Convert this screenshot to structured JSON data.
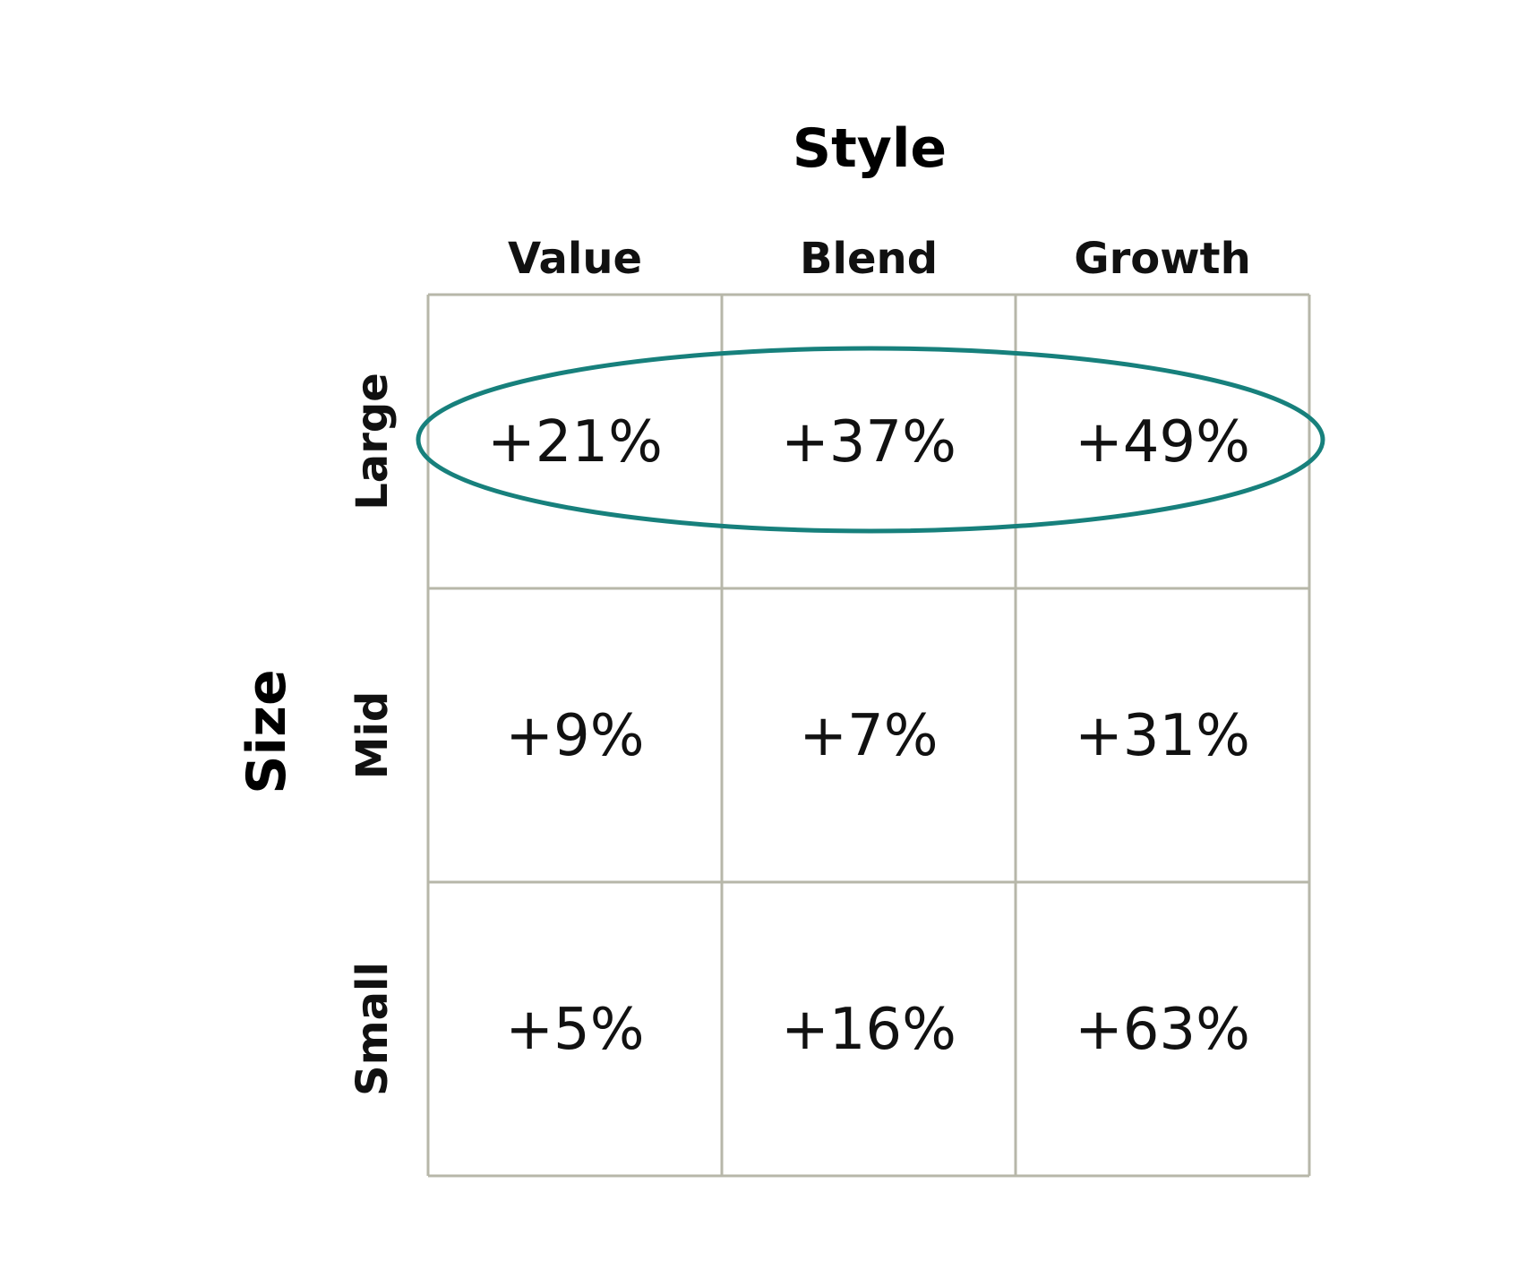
{
  "chart_data": {
    "type": "table",
    "column_axis_title": "Style",
    "row_axis_title": "Size",
    "columns": [
      "Value",
      "Blend",
      "Growth"
    ],
    "rows": [
      "Large",
      "Mid",
      "Small"
    ],
    "values": [
      [
        "+21%",
        "+37%",
        "+49%"
      ],
      [
        "+9%",
        "+7%",
        "+31%"
      ],
      [
        "+5%",
        "+16%",
        "+63%"
      ]
    ],
    "highlighted_row": "Large",
    "colors": {
      "grid": "#b7b7a9",
      "highlight": "#17807c",
      "text": "#111111"
    }
  }
}
